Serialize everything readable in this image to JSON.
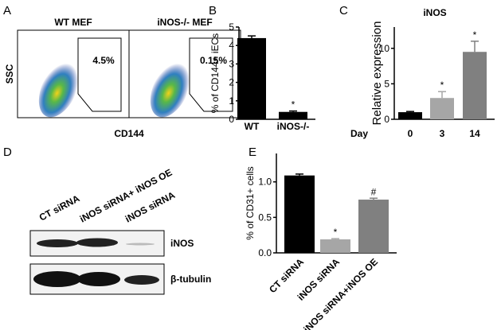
{
  "panels": {
    "A": {
      "letter": "A",
      "left_title": "WT MEF",
      "right_title": "iNOS-/- MEF",
      "left_gate": "4.5%",
      "right_gate": "0.15%",
      "y_label": "SSC",
      "x_label": "CD144"
    },
    "D": {
      "letter": "D",
      "lanes": [
        "CT siRNA",
        "iNOS siRNA+ iNOS OE",
        "iNOS siRNA"
      ],
      "bands": [
        "iNOS",
        "β-tubulin"
      ]
    }
  },
  "chart_data": [
    {
      "type": "bar",
      "letter": "B",
      "y_label": "% of CD144+ iECs",
      "categories": [
        "WT",
        "iNOS-/-"
      ],
      "values": [
        4.4,
        0.4
      ],
      "errors": [
        0.12,
        0.05
      ],
      "colors": [
        "#000000",
        "#000000"
      ],
      "bar_labels": [
        null,
        "*"
      ],
      "ylim": [
        0,
        5
      ],
      "yticks": [
        0,
        1,
        2,
        3,
        4,
        5
      ]
    },
    {
      "type": "bar",
      "letter": "C",
      "title": "iNOS",
      "y_label": "Relative expression",
      "x_label": "Day",
      "categories": [
        "0",
        "3",
        "14"
      ],
      "values": [
        1,
        3,
        9.5
      ],
      "errors": [
        0.1,
        0.9,
        1.5
      ],
      "colors": [
        "#000000",
        "#a6a6a6",
        "#808080"
      ],
      "bar_labels": [
        null,
        "*",
        "*"
      ],
      "ylim": [
        0,
        13
      ],
      "yticks": [
        0,
        5,
        10
      ]
    },
    {
      "type": "bar",
      "letter": "E",
      "y_label": "% of CD31+ cells",
      "categories": [
        "CT siRNA",
        "iNOS siRNA",
        "iNOS siRNA+iNOS OE"
      ],
      "values": [
        1.09,
        0.19,
        0.75
      ],
      "errors": [
        0.02,
        0.01,
        0.02
      ],
      "colors": [
        "#000000",
        "#a6a6a6",
        "#808080"
      ],
      "bar_labels": [
        null,
        "*",
        "#"
      ],
      "ylim": [
        0,
        1.4
      ],
      "yticks": [
        {
          "value": 0,
          "label": "0.0"
        },
        {
          "value": 0.5,
          "label": "0.5"
        },
        {
          "value": 1,
          "label": "1.0"
        }
      ]
    }
  ]
}
